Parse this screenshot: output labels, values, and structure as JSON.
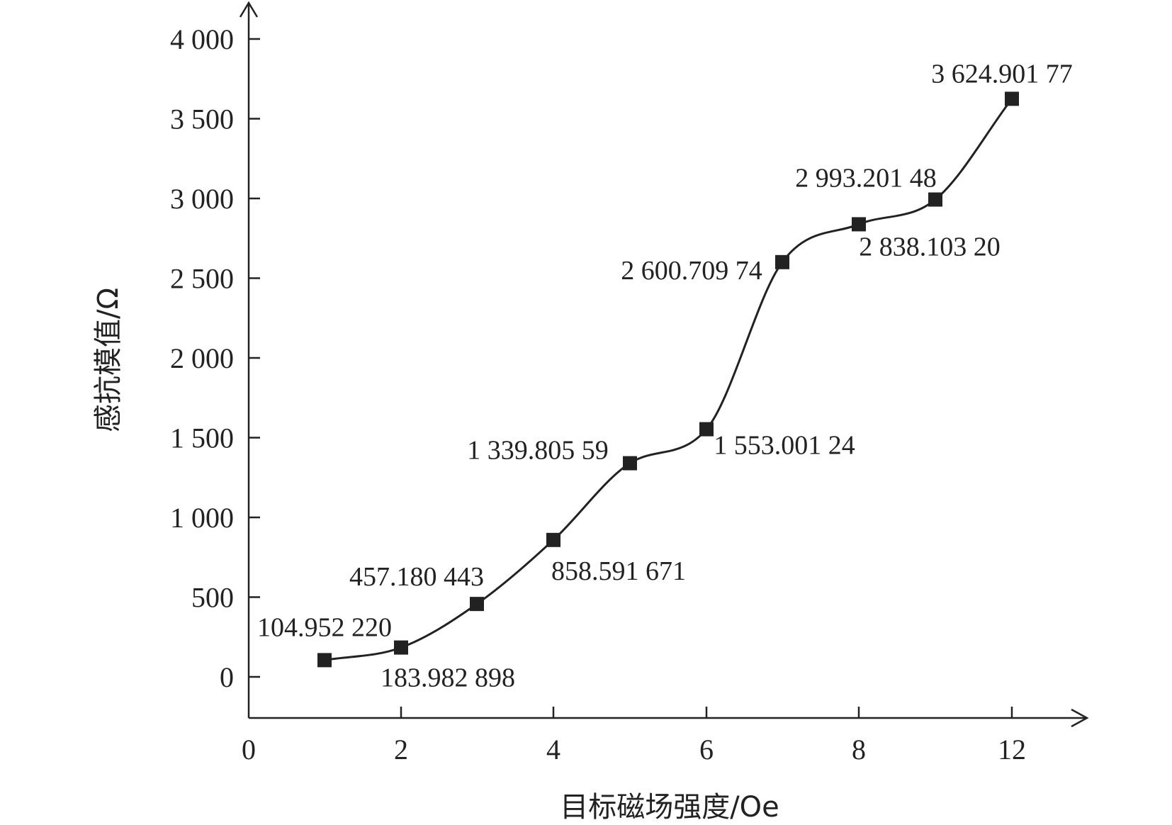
{
  "chart_data": {
    "type": "line",
    "xlabel": "目标磁场强度/Oe",
    "ylabel": "感抗模值/Ω",
    "x_ticks": [
      "0",
      "2",
      "4",
      "6",
      "8",
      "12"
    ],
    "y_ticks": [
      "0",
      "500",
      "1 000",
      "1 500",
      "2 000",
      "2 500",
      "3 000",
      "3 500",
      "4 000"
    ],
    "y_tick_values": [
      0,
      500,
      1000,
      1500,
      2000,
      2500,
      3000,
      3500,
      4000
    ],
    "ylim": [
      0,
      4000
    ],
    "grid": false,
    "legend": "none",
    "series": [
      {
        "marker": "square",
        "color": "#222222",
        "points": [
          {
            "x": 1,
            "y": 104.95222,
            "label": "104.952 220"
          },
          {
            "x": 2,
            "y": 183.982898,
            "label": "183.982 898"
          },
          {
            "x": 3,
            "y": 457.180443,
            "label": "457.180 443"
          },
          {
            "x": 4,
            "y": 858.591671,
            "label": "858.591 671"
          },
          {
            "x": 5,
            "y": 1339.80559,
            "label": "1 339.805 59"
          },
          {
            "x": 6,
            "y": 1553.00124,
            "label": "1 553.001 24"
          },
          {
            "x": 7,
            "y": 2600.70974,
            "label": "2 600.709 74"
          },
          {
            "x": 8,
            "y": 2838.1032,
            "label": "2 838.103 20"
          },
          {
            "x": 9,
            "y": 2993.20148,
            "label": "2 993.201 48"
          },
          {
            "x": 12,
            "y": 3624.90177,
            "label": "3 624.901 77"
          }
        ]
      }
    ]
  }
}
